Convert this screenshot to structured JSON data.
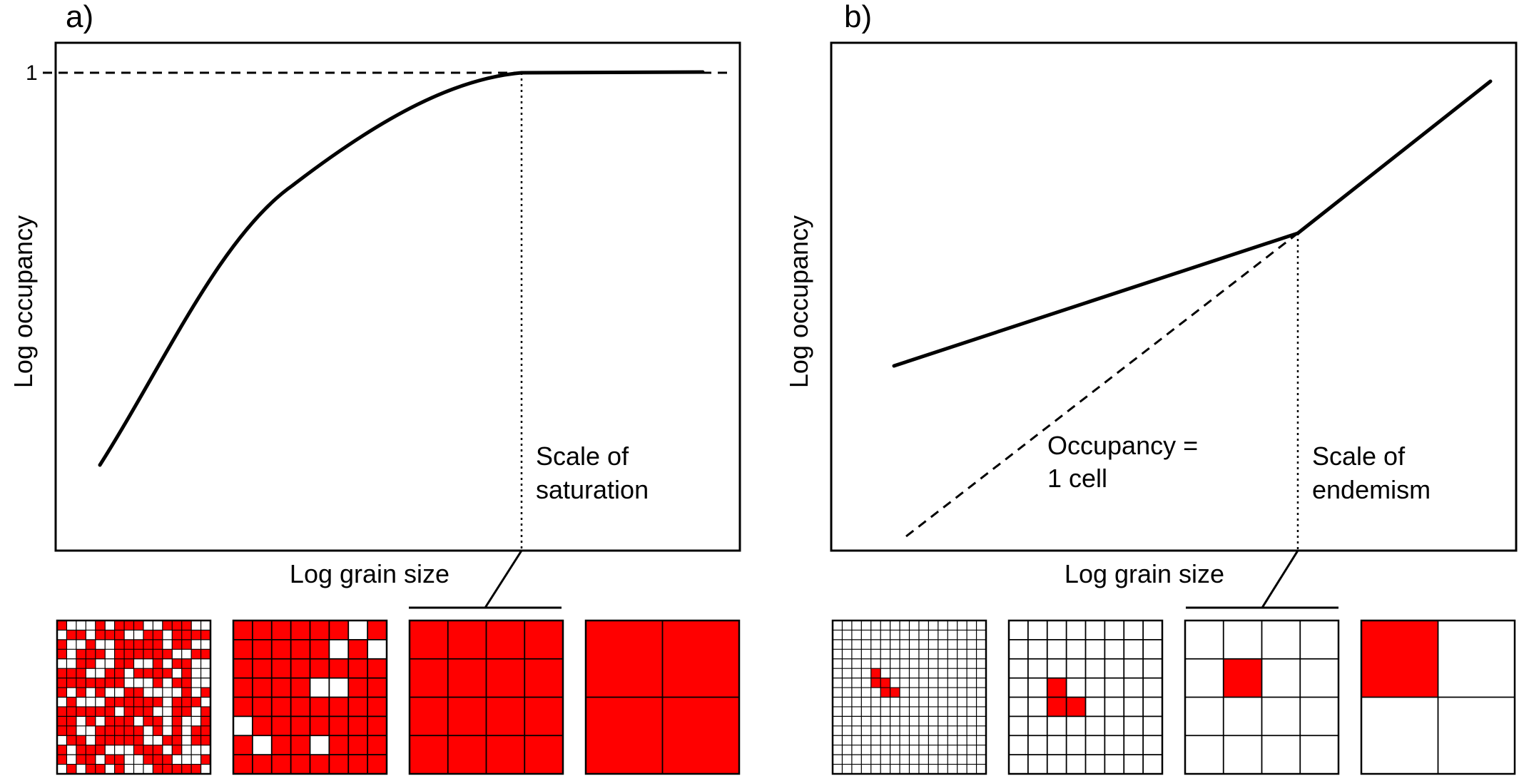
{
  "panel_a": {
    "label": "a)",
    "ylabel": "Log occupancy",
    "xlabel": "Log grain size",
    "y_tick_label": "1",
    "annotation_line1": "Scale of",
    "annotation_line2": "saturation"
  },
  "panel_b": {
    "label": "b)",
    "ylabel": "Log occupancy",
    "xlabel": "Log grain size",
    "dashed_label_line1": "Occupancy =",
    "dashed_label_line2": "1 cell",
    "annotation_line1": "Scale of",
    "annotation_line2": "endemism"
  },
  "colors": {
    "occupied": "#ff0000",
    "empty": "#ffffff",
    "line": "#000000"
  },
  "grids_a": [
    {
      "n": 16,
      "occupied": "random-dense"
    },
    {
      "n": 8,
      "empty_cells": [
        [
          0,
          6
        ],
        [
          1,
          5
        ],
        [
          1,
          7
        ],
        [
          3,
          4
        ],
        [
          3,
          5
        ],
        [
          5,
          0
        ],
        [
          6,
          1
        ],
        [
          6,
          4
        ]
      ]
    },
    {
      "n": 4,
      "occupied": "all"
    },
    {
      "n": 2,
      "occupied": "all"
    }
  ],
  "grids_b": [
    {
      "n": 16,
      "occupied_cells": [
        [
          5,
          4
        ],
        [
          6,
          4
        ],
        [
          6,
          5
        ],
        [
          7,
          5
        ],
        [
          7,
          6
        ]
      ]
    },
    {
      "n": 8,
      "occupied_cells": [
        [
          3,
          2
        ],
        [
          4,
          2
        ],
        [
          4,
          3
        ]
      ]
    },
    {
      "n": 4,
      "occupied_cells": [
        [
          1,
          1
        ]
      ]
    },
    {
      "n": 2,
      "occupied_cells": [
        [
          0,
          0
        ]
      ]
    }
  ]
}
